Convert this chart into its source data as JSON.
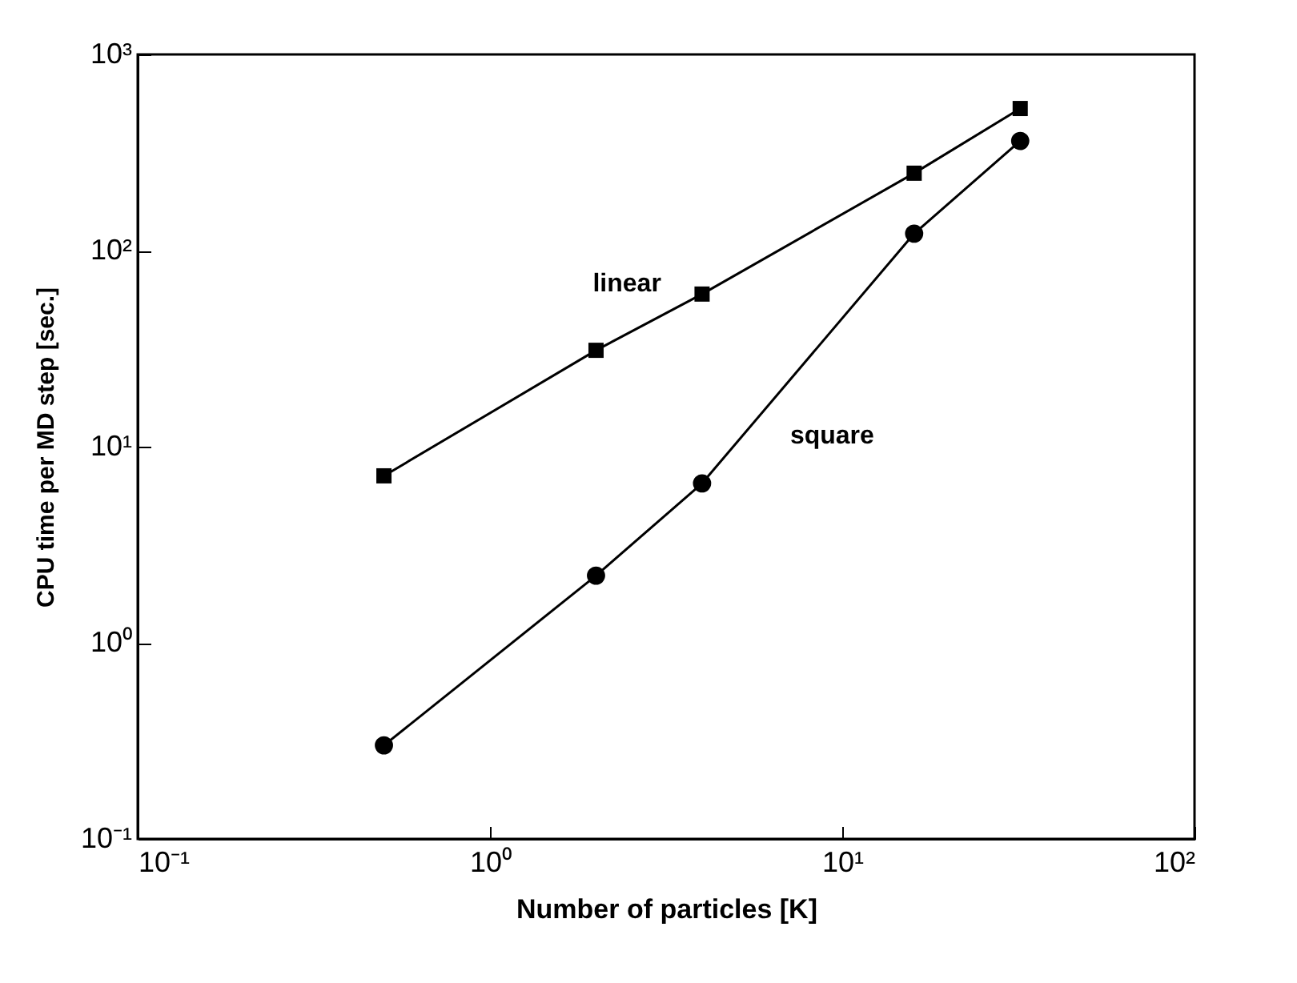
{
  "chart_data": {
    "type": "line",
    "xlabel": "Number  of  particles  [K]",
    "ylabel": "CPU time per MD step [sec.]",
    "x": [
      0.5,
      2,
      4,
      16,
      32
    ],
    "series": [
      {
        "name": "linear",
        "color": "#000000",
        "marker": "square",
        "values": [
          7.1,
          31,
          60,
          248,
          530
        ]
      },
      {
        "name": "square",
        "color": "#000000",
        "marker": "circle",
        "values": [
          0.3,
          2.2,
          6.5,
          122,
          362
        ]
      }
    ],
    "log": "xy",
    "xlim": [
      0.1,
      100
    ],
    "ylim": [
      0.1,
      1000
    ],
    "xticks": [
      {
        "value": 0.1,
        "label": "10⁻¹"
      },
      {
        "value": 1,
        "label": "10⁰"
      },
      {
        "value": 10,
        "label": "10¹"
      },
      {
        "value": 100,
        "label": "10²"
      }
    ],
    "yticks": [
      {
        "value": 0.1,
        "label": "10⁻¹"
      },
      {
        "value": 1,
        "label": "10⁰"
      },
      {
        "value": 10,
        "label": "10¹"
      },
      {
        "value": 100,
        "label": "10²"
      },
      {
        "value": 1000,
        "label": "10³"
      }
    ],
    "grid": false,
    "legend": false,
    "line_style": "solid"
  }
}
